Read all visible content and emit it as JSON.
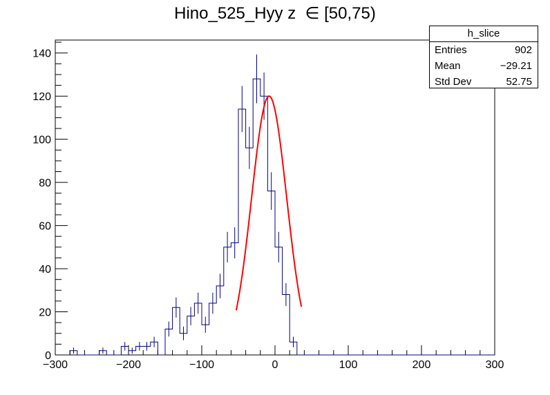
{
  "chart_data": {
    "type": "histogram",
    "title": "Hino_525_Hyy z  ∈ [50,75)",
    "xlabel": "",
    "ylabel": "",
    "xlim": [
      -300,
      300
    ],
    "ylim": [
      0,
      146
    ],
    "bin_width": 10,
    "x_ticks": [
      -300,
      -200,
      -100,
      0,
      100,
      200,
      300
    ],
    "x_tick_labels": [
      "−300",
      "−200",
      "−100",
      "0",
      "100",
      "200",
      "300"
    ],
    "y_ticks": [
      0,
      20,
      40,
      60,
      80,
      100,
      120,
      140
    ],
    "y_tick_labels": [
      "0",
      "20",
      "40",
      "60",
      "80",
      "100",
      "120",
      "140"
    ],
    "bin_low_edges": [
      -300,
      -290,
      -280,
      -270,
      -260,
      -250,
      -240,
      -230,
      -220,
      -210,
      -200,
      -190,
      -180,
      -170,
      -160,
      -150,
      -140,
      -130,
      -120,
      -110,
      -100,
      -90,
      -80,
      -70,
      -60,
      -50,
      -40,
      -30,
      -20,
      -10,
      0,
      10,
      20,
      30,
      40,
      50,
      60,
      70,
      80,
      90,
      100,
      110,
      120,
      130,
      140,
      150,
      160,
      170,
      180,
      190,
      200,
      210,
      220,
      230,
      240,
      250,
      260,
      270,
      280,
      290
    ],
    "counts": [
      0,
      0,
      2,
      0,
      0,
      0,
      2,
      0,
      0,
      4,
      2,
      4,
      4,
      6,
      0,
      12,
      22,
      10,
      18,
      24,
      14,
      24,
      32,
      50,
      52,
      114,
      96,
      128,
      120,
      76,
      50,
      28,
      6,
      0,
      0,
      0,
      0,
      0,
      0,
      0,
      0,
      0,
      0,
      0,
      0,
      0,
      0,
      0,
      0,
      0,
      0,
      0,
      0,
      0,
      0,
      0,
      0,
      0,
      0,
      0
    ],
    "histogram_color": "#000080",
    "fit": {
      "type": "gaussian",
      "color": "#ff0000",
      "amplitude": 120,
      "mean": -8,
      "sigma": 24,
      "range": [
        -53,
        36
      ]
    },
    "stats_box": {
      "name": "h_slice",
      "rows": [
        {
          "label": "Entries",
          "value": "902"
        },
        {
          "label": "Mean",
          "value": "−29.21"
        },
        {
          "label": "Std Dev",
          "value": "52.75"
        }
      ]
    },
    "grid": false,
    "legend": "none"
  }
}
